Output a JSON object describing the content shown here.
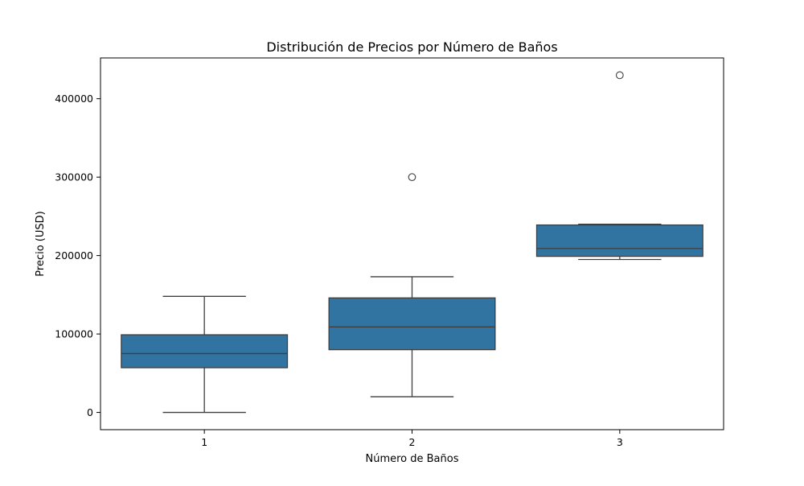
{
  "chart_data": {
    "type": "box",
    "title": "Distribución de Precios por Número de Baños",
    "xlabel": "Número de Baños",
    "ylabel": "Precio (USD)",
    "categories": [
      "1",
      "2",
      "3"
    ],
    "yticks": [
      0,
      100000,
      200000,
      300000,
      400000
    ],
    "ytick_labels": [
      "0",
      "100000",
      "200000",
      "300000",
      "400000"
    ],
    "ylim": [
      -22000,
      452000
    ],
    "grid": false,
    "boxes": [
      {
        "category": "1",
        "whisker_low": 0,
        "q1": 57000,
        "median": 75000,
        "q3": 99000,
        "whisker_high": 148000,
        "outliers": []
      },
      {
        "category": "2",
        "whisker_low": 20000,
        "q1": 80000,
        "median": 109000,
        "q3": 146000,
        "whisker_high": 173000,
        "outliers": [
          300000
        ]
      },
      {
        "category": "3",
        "whisker_low": 195000,
        "q1": 199000,
        "median": 209000,
        "q3": 239000,
        "whisker_high": 240000,
        "outliers": [
          430000
        ]
      }
    ],
    "colors": {
      "box_fill": "#3274a1",
      "line": "#3f3f3f",
      "axes": "#000000"
    }
  }
}
